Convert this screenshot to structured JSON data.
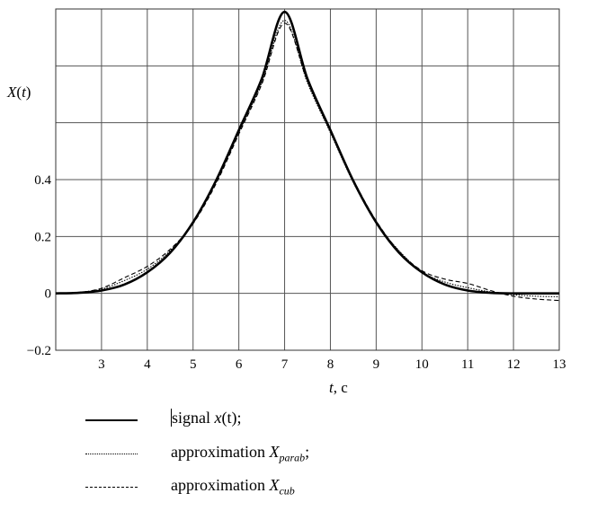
{
  "chart_data": {
    "type": "line",
    "xlabel_var": "t",
    "xlabel_unit": ", c",
    "ylabel": "X(t)",
    "xlim": [
      2,
      13
    ],
    "ylim": [
      -0.2,
      1.0
    ],
    "x_ticks": [
      "3",
      "4",
      "5",
      "6",
      "7",
      "8",
      "9",
      "10",
      "11",
      "12",
      "13"
    ],
    "y_ticks": [
      "−0.2",
      "0",
      "0.2",
      "0.4"
    ],
    "grid": true,
    "series": [
      {
        "name": "signal x(t)",
        "style": "solid",
        "x": [
          2.0,
          2.5,
          3.0,
          3.5,
          4.0,
          4.5,
          5.0,
          5.5,
          6.0,
          6.5,
          7.0,
          7.5,
          8.0,
          8.5,
          9.0,
          9.5,
          10.0,
          10.5,
          11.0,
          11.5,
          12.0,
          12.5,
          13.0
        ],
        "y": [
          0.0,
          0.002,
          0.01,
          0.031,
          0.074,
          0.143,
          0.25,
          0.396,
          0.574,
          0.754,
          0.99,
          0.754,
          0.574,
          0.396,
          0.25,
          0.143,
          0.074,
          0.031,
          0.01,
          0.002,
          0.0,
          0.0,
          0.0
        ]
      },
      {
        "name": "approximation X_parab",
        "style": "dotted",
        "x": [
          2.0,
          2.5,
          3.0,
          3.5,
          4.0,
          4.5,
          5.0,
          5.5,
          6.0,
          6.5,
          7.0,
          7.5,
          8.0,
          8.5,
          9.0,
          9.5,
          10.0,
          10.5,
          11.0,
          11.5,
          12.0,
          12.5,
          13.0
        ],
        "y": [
          0.0,
          0.004,
          0.015,
          0.045,
          0.085,
          0.15,
          0.248,
          0.39,
          0.565,
          0.74,
          0.96,
          0.74,
          0.565,
          0.39,
          0.248,
          0.15,
          0.075,
          0.04,
          0.02,
          0.005,
          -0.005,
          -0.01,
          -0.012
        ]
      },
      {
        "name": "approximation X_cub",
        "style": "dashed",
        "x": [
          2.0,
          2.5,
          3.0,
          3.5,
          4.0,
          4.5,
          5.0,
          5.5,
          6.0,
          6.5,
          7.0,
          7.5,
          8.0,
          8.5,
          9.0,
          9.5,
          10.0,
          10.5,
          11.0,
          11.5,
          12.0,
          12.5,
          13.0
        ],
        "y": [
          0.0,
          0.003,
          0.018,
          0.055,
          0.095,
          0.155,
          0.245,
          0.385,
          0.56,
          0.735,
          0.95,
          0.745,
          0.57,
          0.4,
          0.255,
          0.148,
          0.08,
          0.05,
          0.035,
          0.01,
          -0.01,
          -0.02,
          -0.025
        ]
      }
    ]
  },
  "legend": {
    "items": [
      {
        "text": "signal ",
        "var": "x",
        "arg": "(t)",
        "suffix": ";"
      },
      {
        "text": "approximation ",
        "var": "X",
        "sub": "parab",
        "suffix": ";"
      },
      {
        "text": "approximation ",
        "var": "X",
        "sub": "cub",
        "suffix": ""
      }
    ]
  }
}
